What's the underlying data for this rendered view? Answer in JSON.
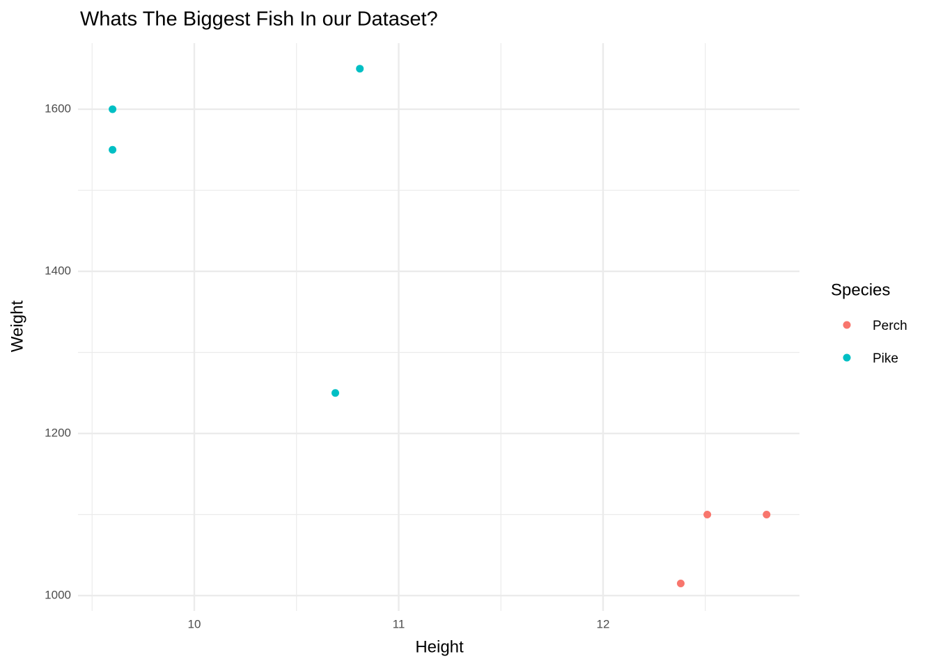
{
  "chart_data": {
    "type": "scatter",
    "title": "Whats The Biggest Fish In our Dataset?",
    "x_label": "Height",
    "y_label": "Weight",
    "legend_title": "Species",
    "legend_position": "right",
    "grid": true,
    "xlim": [
      9.431,
      12.961
    ],
    "ylim": [
      981.1,
      1681.5
    ],
    "xticks": [
      10,
      11,
      12
    ],
    "yticks": [
      1000,
      1200,
      1400,
      1600
    ],
    "series": [
      {
        "name": "Perch",
        "color": "#F8766D",
        "x": [
          12.38,
          12.51,
          12.8
        ],
        "values": [
          1015,
          1100,
          1100
        ]
      },
      {
        "name": "Pike",
        "color": "#00BFC4",
        "x": [
          9.6,
          9.6,
          10.81,
          10.69
        ],
        "values": [
          1600,
          1550,
          1650,
          1250
        ]
      }
    ]
  }
}
